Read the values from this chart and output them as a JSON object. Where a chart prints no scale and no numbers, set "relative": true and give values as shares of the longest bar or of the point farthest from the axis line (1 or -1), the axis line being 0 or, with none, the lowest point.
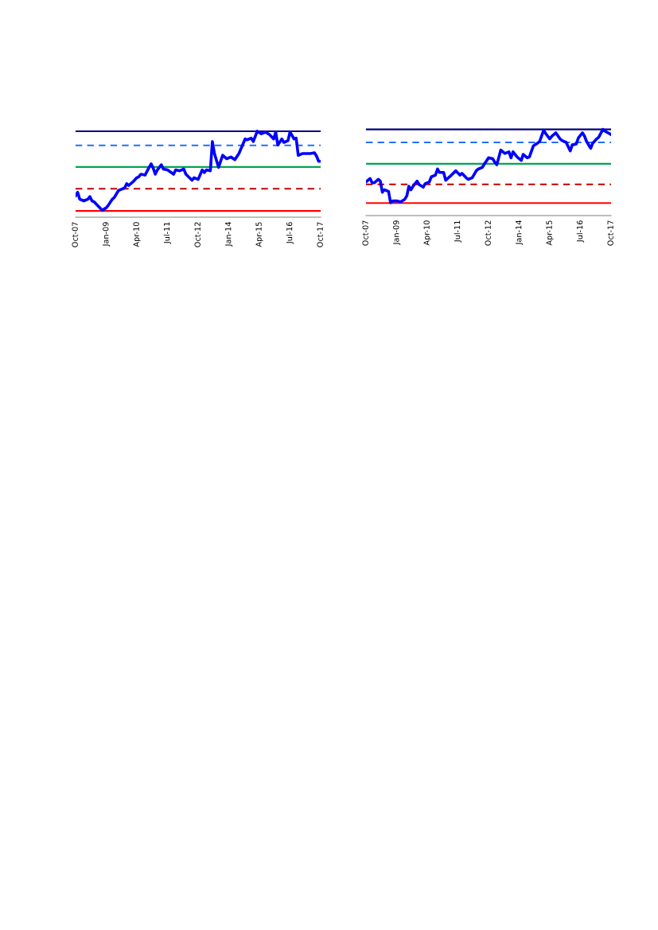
{
  "chart_data": [
    {
      "type": "line",
      "relative": true,
      "marker": "none",
      "line_style": "solid",
      "xlim": [
        "2007-10",
        "2017-10"
      ],
      "xticks": [
        {
          "value": "2007-10",
          "label": "Oct-07"
        },
        {
          "value": "2009-01",
          "label": "Jan-09"
        },
        {
          "value": "2010-04",
          "label": "Apr-10"
        },
        {
          "value": "2011-07",
          "label": "Jul-11"
        },
        {
          "value": "2012-10",
          "label": "Oct-12"
        },
        {
          "value": "2014-01",
          "label": "Jan-14"
        },
        {
          "value": "2015-04",
          "label": "Apr-15"
        },
        {
          "value": "2016-07",
          "label": "Jul-16"
        },
        {
          "value": "2017-10",
          "label": "Oct-17"
        }
      ],
      "series": [
        {
          "color": "#0000ff",
          "x": [
            "2007-10",
            "2007-11",
            "2007-12",
            "2008-02",
            "2008-04",
            "2008-05",
            "2008-06",
            "2008-07",
            "2008-09",
            "2008-11",
            "2009-01",
            "2009-02",
            "2009-04",
            "2009-05",
            "2009-07",
            "2009-08",
            "2009-10",
            "2009-11",
            "2009-12",
            "2010-02",
            "2010-04",
            "2010-05",
            "2010-06",
            "2010-08",
            "2010-10",
            "2010-11",
            "2010-12",
            "2011-01",
            "2011-02",
            "2011-04",
            "2011-05",
            "2011-07",
            "2011-10",
            "2011-11",
            "2012-01",
            "2012-03",
            "2012-04",
            "2012-07",
            "2012-08",
            "2012-10",
            "2012-12",
            "2013-01",
            "2013-02",
            "2013-04",
            "2013-05",
            "2013-06",
            "2013-08",
            "2013-10",
            "2013-12",
            "2014-02",
            "2014-04",
            "2014-06",
            "2014-09",
            "2014-10",
            "2014-12",
            "2015-01",
            "2015-03",
            "2015-05",
            "2015-07",
            "2015-09",
            "2015-11",
            "2015-12",
            "2016-01",
            "2016-03",
            "2016-04",
            "2016-06",
            "2016-07",
            "2016-09",
            "2016-10",
            "2016-11",
            "2017-01",
            "2017-03",
            "2017-05",
            "2017-07",
            "2017-08",
            "2017-09",
            "2017-10"
          ],
          "values": [
            0.25,
            0.29,
            0.21,
            0.19,
            0.21,
            0.24,
            0.19,
            0.18,
            0.13,
            0.08,
            0.11,
            0.14,
            0.21,
            0.23,
            0.31,
            0.32,
            0.34,
            0.39,
            0.37,
            0.41,
            0.46,
            0.47,
            0.5,
            0.49,
            0.58,
            0.62,
            0.57,
            0.5,
            0.55,
            0.61,
            0.56,
            0.55,
            0.5,
            0.55,
            0.54,
            0.56,
            0.5,
            0.43,
            0.46,
            0.44,
            0.55,
            0.52,
            0.55,
            0.54,
            0.88,
            0.74,
            0.58,
            0.72,
            0.68,
            0.7,
            0.67,
            0.74,
            0.91,
            0.9,
            0.92,
            0.88,
            1.0,
            0.97,
            0.99,
            0.96,
            0.91,
            0.99,
            0.84,
            0.91,
            0.87,
            0.89,
            0.99,
            0.91,
            0.92,
            0.72,
            0.74,
            0.74,
            0.74,
            0.75,
            0.71,
            0.65,
            0.65
          ]
        }
      ],
      "ref_lines": [
        {
          "axis": "y",
          "value": 1.0,
          "color": "#000080",
          "line_style": "solid"
        },
        {
          "axis": "y",
          "value": 0.836,
          "color": "#1f6fff",
          "line_style": "dashed"
        },
        {
          "axis": "y",
          "value": 0.584,
          "color": "#00a651",
          "line_style": "solid"
        },
        {
          "axis": "y",
          "value": 0.331,
          "color": "#c00000",
          "line_style": "dashed"
        },
        {
          "axis": "y",
          "value": 0.073,
          "color": "#ff0000",
          "line_style": "solid"
        }
      ]
    },
    {
      "type": "line",
      "relative": true,
      "marker": "none",
      "line_style": "solid",
      "xlim": [
        "2007-10",
        "2017-10"
      ],
      "xticks": [
        {
          "value": "2007-10",
          "label": "Oct-07"
        },
        {
          "value": "2009-01",
          "label": "Jan-09"
        },
        {
          "value": "2010-04",
          "label": "Apr-10"
        },
        {
          "value": "2011-07",
          "label": "Jul-11"
        },
        {
          "value": "2012-10",
          "label": "Oct-12"
        },
        {
          "value": "2014-01",
          "label": "Jan-14"
        },
        {
          "value": "2015-04",
          "label": "Apr-15"
        },
        {
          "value": "2016-07",
          "label": "Jul-16"
        },
        {
          "value": "2017-10",
          "label": "Oct-17"
        }
      ],
      "series": [
        {
          "color": "#0000ff",
          "x": [
            "2007-10",
            "2007-12",
            "2008-01",
            "2008-02",
            "2008-04",
            "2008-05",
            "2008-06",
            "2008-07",
            "2008-09",
            "2008-10",
            "2008-11",
            "2009-01",
            "2009-03",
            "2009-05",
            "2009-06",
            "2009-07",
            "2009-08",
            "2009-09",
            "2009-11",
            "2009-12",
            "2010-02",
            "2010-03",
            "2010-05",
            "2010-06",
            "2010-08",
            "2010-09",
            "2010-10",
            "2010-12",
            "2011-01",
            "2011-03",
            "2011-06",
            "2011-08",
            "2011-09",
            "2011-11",
            "2011-12",
            "2012-02",
            "2012-04",
            "2012-05",
            "2012-07",
            "2012-08",
            "2012-10",
            "2012-12",
            "2013-01",
            "2013-02",
            "2013-03",
            "2013-04",
            "2013-06",
            "2013-08",
            "2013-09",
            "2013-10",
            "2013-12",
            "2014-02",
            "2014-03",
            "2014-05",
            "2014-06",
            "2014-08",
            "2014-10",
            "2014-11",
            "2015-01",
            "2015-02",
            "2015-04",
            "2015-05",
            "2015-07",
            "2015-09",
            "2015-10",
            "2015-12",
            "2016-02",
            "2016-03",
            "2016-05",
            "2016-06",
            "2016-08",
            "2016-09",
            "2016-10",
            "2016-12",
            "2017-01",
            "2017-03",
            "2017-04",
            "2017-06",
            "2017-07",
            "2017-10"
          ],
          "values": [
            0.39,
            0.43,
            0.38,
            0.38,
            0.42,
            0.4,
            0.27,
            0.3,
            0.28,
            0.15,
            0.17,
            0.17,
            0.16,
            0.19,
            0.23,
            0.34,
            0.3,
            0.34,
            0.4,
            0.36,
            0.33,
            0.37,
            0.39,
            0.45,
            0.47,
            0.54,
            0.5,
            0.5,
            0.41,
            0.45,
            0.52,
            0.47,
            0.49,
            0.44,
            0.42,
            0.44,
            0.52,
            0.54,
            0.56,
            0.6,
            0.67,
            0.66,
            0.62,
            0.59,
            0.67,
            0.76,
            0.72,
            0.74,
            0.67,
            0.74,
            0.68,
            0.64,
            0.71,
            0.67,
            0.68,
            0.81,
            0.84,
            0.86,
            0.99,
            0.95,
            0.89,
            0.92,
            0.96,
            0.89,
            0.87,
            0.85,
            0.75,
            0.82,
            0.83,
            0.9,
            0.96,
            0.92,
            0.86,
            0.78,
            0.84,
            0.89,
            0.91,
            1.0,
            0.98,
            0.94
          ]
        }
      ],
      "ref_lines": [
        {
          "axis": "y",
          "value": 1.0,
          "color": "#000080",
          "line_style": "solid"
        },
        {
          "axis": "y",
          "value": 0.848,
          "color": "#1f6fff",
          "line_style": "dashed"
        },
        {
          "axis": "y",
          "value": 0.601,
          "color": "#00a651",
          "line_style": "solid"
        },
        {
          "axis": "y",
          "value": 0.362,
          "color": "#c00000",
          "line_style": "dashed"
        },
        {
          "axis": "y",
          "value": 0.146,
          "color": "#ff0000",
          "line_style": "solid"
        }
      ]
    }
  ]
}
